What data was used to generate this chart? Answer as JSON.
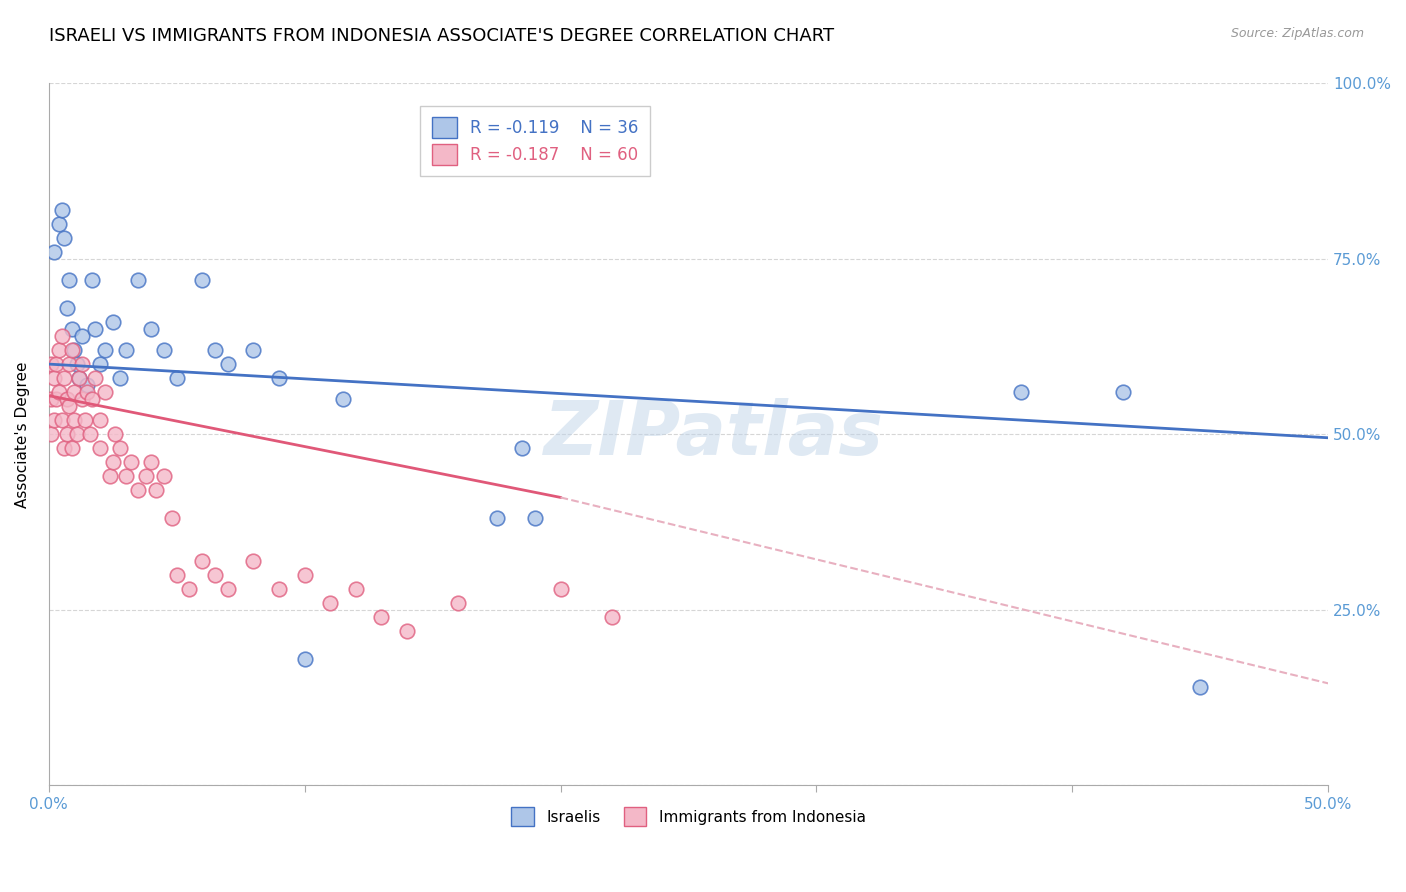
{
  "title": "ISRAELI VS IMMIGRANTS FROM INDONESIA ASSOCIATE'S DEGREE CORRELATION CHART",
  "source": "Source: ZipAtlas.com",
  "ylabel": "Associate's Degree",
  "watermark": "ZIPatlas",
  "xlim": [
    0.0,
    0.5
  ],
  "ylim": [
    0.0,
    1.0
  ],
  "legend_R1": "R = -0.119",
  "legend_N1": "N = 36",
  "legend_R2": "R = -0.187",
  "legend_N2": "N = 60",
  "blue_scatter_color": "#aec6e8",
  "blue_edge_color": "#4472c4",
  "pink_scatter_color": "#f4b8c8",
  "pink_edge_color": "#e06080",
  "blue_line_color": "#4472c4",
  "pink_line_color": "#e05878",
  "dashed_line_color": "#e8b0c0",
  "axis_color": "#5b9bd5",
  "title_fontsize": 13,
  "label_fontsize": 11,
  "tick_fontsize": 11,
  "blue_line_x0": 0.0,
  "blue_line_y0": 0.6,
  "blue_line_x1": 0.5,
  "blue_line_y1": 0.495,
  "pink_line_x0": 0.0,
  "pink_line_y0": 0.555,
  "pink_line_x1_solid": 0.2,
  "pink_line_y1_solid": 0.41,
  "pink_line_x1_dash": 0.5,
  "pink_line_y1_dash": 0.145,
  "israelis_x": [
    0.002,
    0.004,
    0.005,
    0.006,
    0.007,
    0.008,
    0.009,
    0.01,
    0.011,
    0.012,
    0.013,
    0.015,
    0.017,
    0.018,
    0.02,
    0.022,
    0.025,
    0.028,
    0.03,
    0.035,
    0.04,
    0.045,
    0.05,
    0.06,
    0.065,
    0.07,
    0.08,
    0.09,
    0.1,
    0.115,
    0.175,
    0.185,
    0.19,
    0.38,
    0.42,
    0.45
  ],
  "israelis_y": [
    0.76,
    0.8,
    0.82,
    0.78,
    0.68,
    0.72,
    0.65,
    0.62,
    0.6,
    0.58,
    0.64,
    0.57,
    0.72,
    0.65,
    0.6,
    0.62,
    0.66,
    0.58,
    0.62,
    0.72,
    0.65,
    0.62,
    0.58,
    0.72,
    0.62,
    0.6,
    0.62,
    0.58,
    0.18,
    0.55,
    0.38,
    0.48,
    0.38,
    0.56,
    0.56,
    0.14
  ],
  "indonesia_x": [
    0.001,
    0.001,
    0.001,
    0.002,
    0.002,
    0.003,
    0.003,
    0.004,
    0.004,
    0.005,
    0.005,
    0.006,
    0.006,
    0.007,
    0.007,
    0.008,
    0.008,
    0.009,
    0.009,
    0.01,
    0.01,
    0.011,
    0.012,
    0.013,
    0.013,
    0.014,
    0.015,
    0.016,
    0.017,
    0.018,
    0.02,
    0.02,
    0.022,
    0.024,
    0.025,
    0.026,
    0.028,
    0.03,
    0.032,
    0.035,
    0.038,
    0.04,
    0.042,
    0.045,
    0.048,
    0.05,
    0.055,
    0.06,
    0.065,
    0.07,
    0.08,
    0.09,
    0.1,
    0.11,
    0.12,
    0.13,
    0.14,
    0.16,
    0.2,
    0.22
  ],
  "indonesia_y": [
    0.6,
    0.55,
    0.5,
    0.58,
    0.52,
    0.6,
    0.55,
    0.62,
    0.56,
    0.64,
    0.52,
    0.58,
    0.48,
    0.55,
    0.5,
    0.6,
    0.54,
    0.62,
    0.48,
    0.56,
    0.52,
    0.5,
    0.58,
    0.55,
    0.6,
    0.52,
    0.56,
    0.5,
    0.55,
    0.58,
    0.52,
    0.48,
    0.56,
    0.44,
    0.46,
    0.5,
    0.48,
    0.44,
    0.46,
    0.42,
    0.44,
    0.46,
    0.42,
    0.44,
    0.38,
    0.3,
    0.28,
    0.32,
    0.3,
    0.28,
    0.32,
    0.28,
    0.3,
    0.26,
    0.28,
    0.24,
    0.22,
    0.26,
    0.28,
    0.24
  ]
}
